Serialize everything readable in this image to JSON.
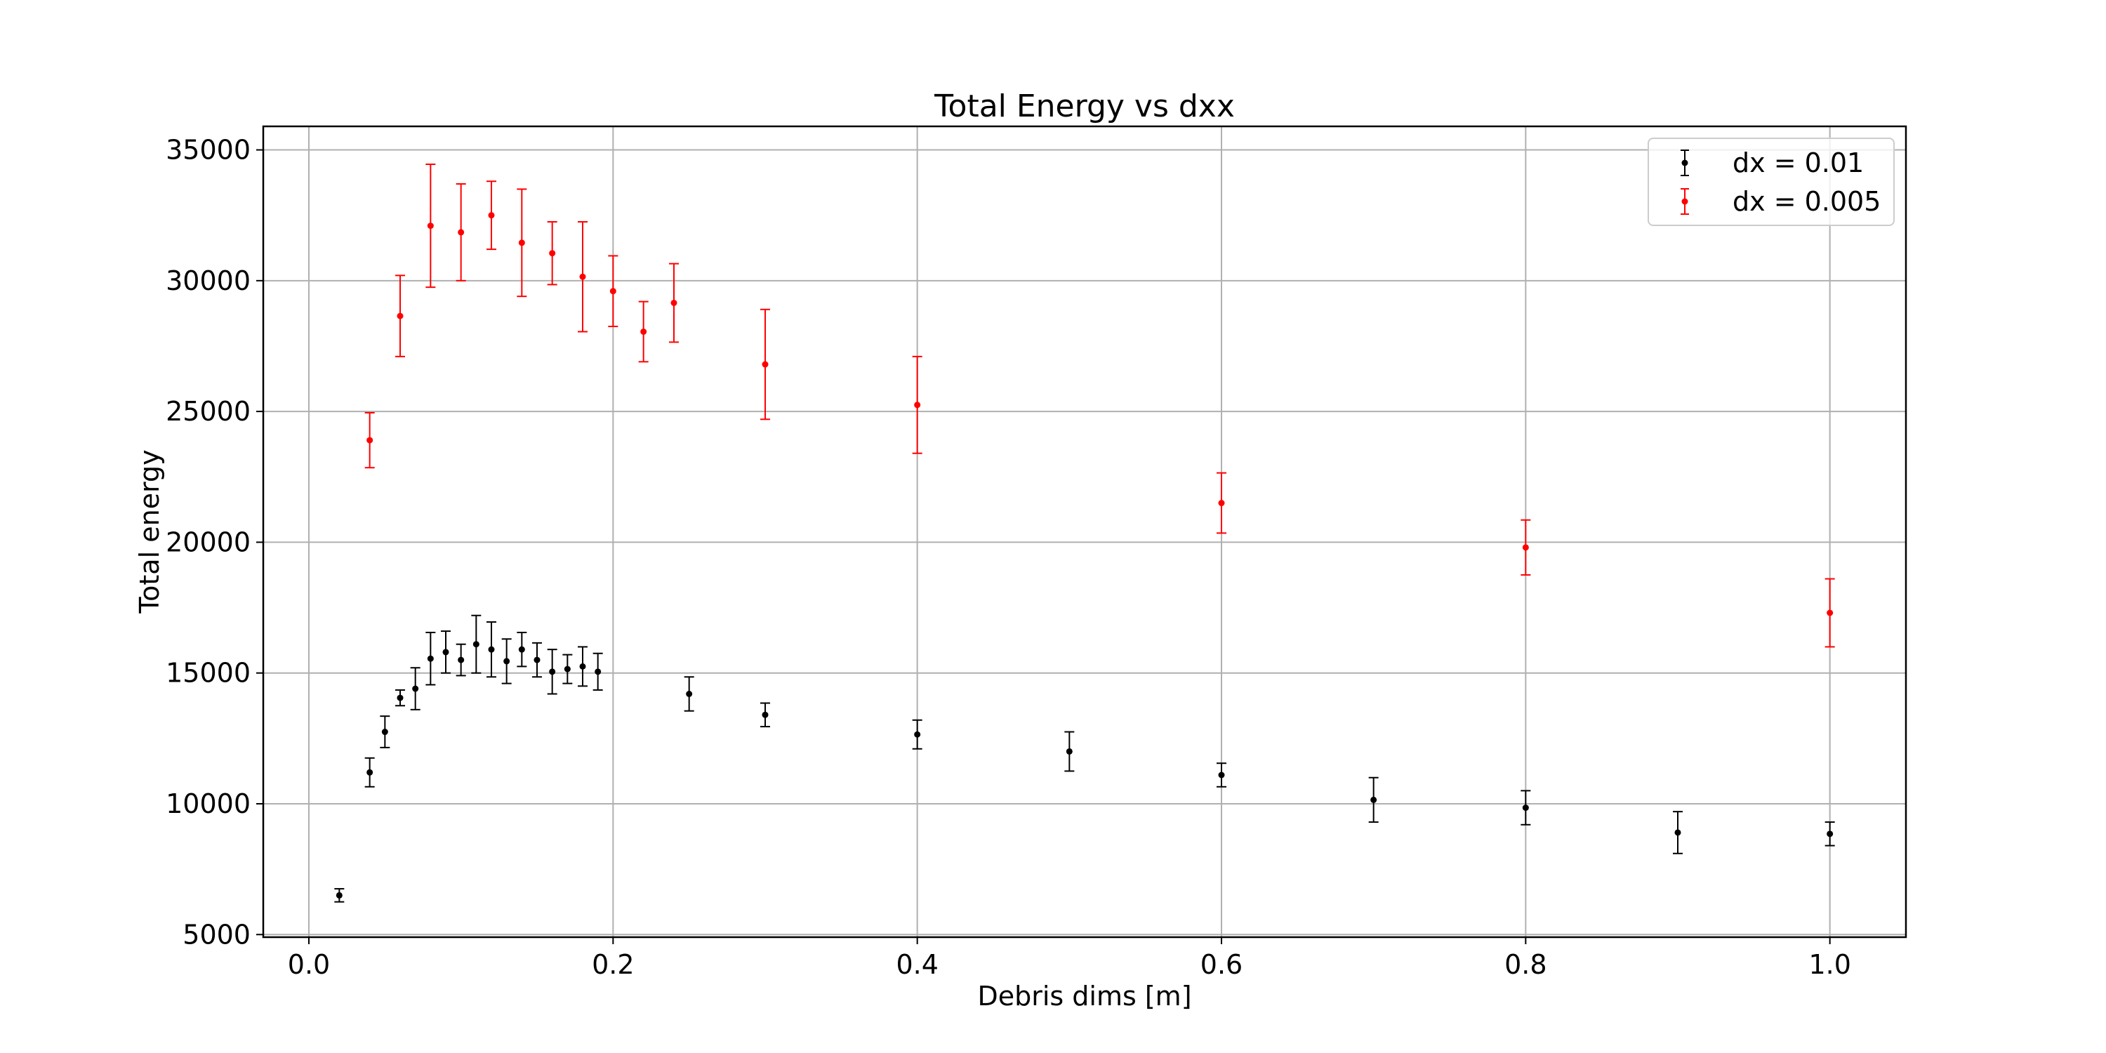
{
  "chart_data": {
    "type": "scatter",
    "title": "Total Energy vs dxx",
    "xlabel": "Debris dims [m]",
    "ylabel": "Total energy",
    "xlim": [
      -0.03,
      1.05
    ],
    "ylim": [
      4900,
      35900
    ],
    "xticks": [
      0.0,
      0.2,
      0.4,
      0.6,
      0.8,
      1.0
    ],
    "xtick_labels": [
      "0.0",
      "0.2",
      "0.4",
      "0.6",
      "0.8",
      "1.0"
    ],
    "yticks": [
      5000,
      10000,
      15000,
      20000,
      25000,
      30000,
      35000
    ],
    "ytick_labels": [
      "5000",
      "10000",
      "15000",
      "20000",
      "25000",
      "30000",
      "35000"
    ],
    "grid": true,
    "legend_position": "top-right",
    "series": [
      {
        "name": "dx = 0.01",
        "color": "#000000",
        "points": [
          {
            "x": 0.02,
            "y": 6500,
            "err": 250
          },
          {
            "x": 0.04,
            "y": 11200,
            "err": 550
          },
          {
            "x": 0.05,
            "y": 12750,
            "err": 600
          },
          {
            "x": 0.06,
            "y": 14050,
            "err": 300
          },
          {
            "x": 0.07,
            "y": 14400,
            "err": 800
          },
          {
            "x": 0.08,
            "y": 15550,
            "err": 1000
          },
          {
            "x": 0.09,
            "y": 15800,
            "err": 800
          },
          {
            "x": 0.1,
            "y": 15500,
            "err": 600
          },
          {
            "x": 0.11,
            "y": 16100,
            "err": 1100
          },
          {
            "x": 0.12,
            "y": 15900,
            "err": 1050
          },
          {
            "x": 0.13,
            "y": 15450,
            "err": 850
          },
          {
            "x": 0.14,
            "y": 15900,
            "err": 650
          },
          {
            "x": 0.15,
            "y": 15500,
            "err": 650
          },
          {
            "x": 0.16,
            "y": 15050,
            "err": 850
          },
          {
            "x": 0.17,
            "y": 15150,
            "err": 550
          },
          {
            "x": 0.18,
            "y": 15250,
            "err": 750
          },
          {
            "x": 0.19,
            "y": 15050,
            "err": 700
          },
          {
            "x": 0.25,
            "y": 14200,
            "err": 650
          },
          {
            "x": 0.3,
            "y": 13400,
            "err": 450
          },
          {
            "x": 0.4,
            "y": 12650,
            "err": 550
          },
          {
            "x": 0.5,
            "y": 12000,
            "err": 750
          },
          {
            "x": 0.6,
            "y": 11100,
            "err": 450
          },
          {
            "x": 0.7,
            "y": 10150,
            "err": 850
          },
          {
            "x": 0.8,
            "y": 9850,
            "err": 650
          },
          {
            "x": 0.9,
            "y": 8900,
            "err": 800
          },
          {
            "x": 1.0,
            "y": 8850,
            "err": 450
          }
        ]
      },
      {
        "name": "dx = 0.005",
        "color": "#ff0000",
        "points": [
          {
            "x": 0.04,
            "y": 23900,
            "err": 1050
          },
          {
            "x": 0.06,
            "y": 28650,
            "err": 1550
          },
          {
            "x": 0.08,
            "y": 32100,
            "err": 2350
          },
          {
            "x": 0.1,
            "y": 31850,
            "err": 1850
          },
          {
            "x": 0.12,
            "y": 32500,
            "err": 1300
          },
          {
            "x": 0.14,
            "y": 31450,
            "err": 2050
          },
          {
            "x": 0.16,
            "y": 31050,
            "err": 1200
          },
          {
            "x": 0.18,
            "y": 30150,
            "err": 2100
          },
          {
            "x": 0.2,
            "y": 29600,
            "err": 1350
          },
          {
            "x": 0.22,
            "y": 28050,
            "err": 1150
          },
          {
            "x": 0.24,
            "y": 29150,
            "err": 1500
          },
          {
            "x": 0.3,
            "y": 26800,
            "err": 2100
          },
          {
            "x": 0.4,
            "y": 25250,
            "err": 1850
          },
          {
            "x": 0.6,
            "y": 21500,
            "err": 1150
          },
          {
            "x": 0.8,
            "y": 19800,
            "err": 1050
          },
          {
            "x": 1.0,
            "y": 17300,
            "err": 1300
          }
        ]
      }
    ]
  }
}
